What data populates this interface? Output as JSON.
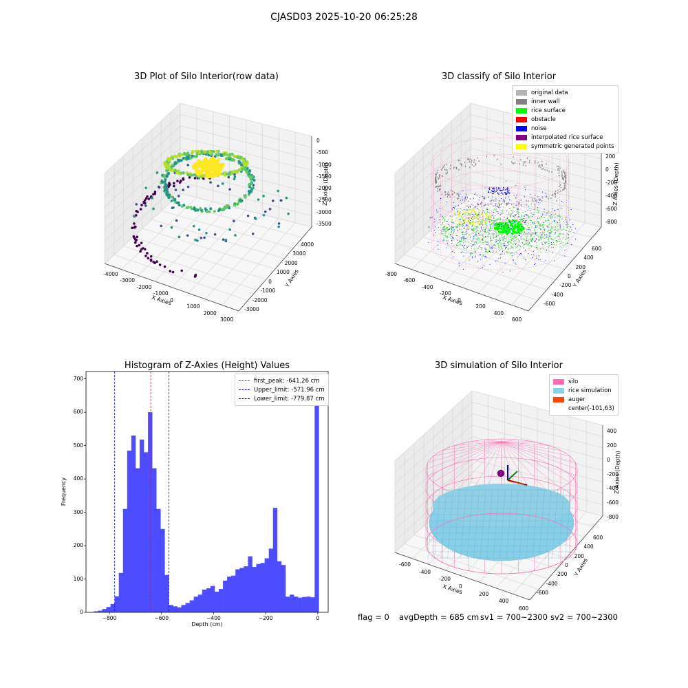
{
  "figure": {
    "suptitle": "CJASD03 2025-10-20 06:25:28",
    "status": {
      "flag": "flag = 0",
      "avg_depth": "avgDepth = 685 cm",
      "sv1": "sv1 = 700~2300",
      "sv2": "sv2 = 700~2300"
    }
  },
  "chart_data": [
    {
      "type": "scatter",
      "title": "3D Plot of Silo Interior(row data)",
      "xlabel": "X Axies",
      "ylabel": "Y Axies",
      "zlabel": "Z Axies (Depth)",
      "x_ticks": [
        "-4000",
        "-3000",
        "-2000",
        "-1000",
        "0",
        "1000",
        "2000",
        "3000"
      ],
      "y_ticks": [
        "-3000",
        "-2000",
        "-1000",
        "0",
        "1000",
        "2000",
        "3000",
        "4000"
      ],
      "z_ticks": [
        "0",
        "-500",
        "-1000",
        "-1500",
        "-2000",
        "-2500",
        "-3000",
        "-3500"
      ],
      "colormap": "viridis",
      "colors": [
        "#440154",
        "#3b528b",
        "#21918c",
        "#5ec962",
        "#fde725"
      ]
    },
    {
      "type": "scatter",
      "title": "3D classify of Silo Interior",
      "xlabel": "X Axies",
      "ylabel": "Y Axies",
      "zlabel": "Z Axies (Depth)",
      "x_ticks": [
        "-800",
        "-600",
        "-400",
        "-200",
        "0",
        "200",
        "400",
        "600"
      ],
      "y_ticks": [
        "-600",
        "-400",
        "-200",
        "0",
        "200",
        "400",
        "600"
      ],
      "z_ticks": [
        "200",
        "0",
        "-200",
        "-400",
        "-600",
        "-800"
      ],
      "z_top_partial": "00",
      "legend": [
        {
          "label": "original data",
          "color": "#b3b3b3"
        },
        {
          "label": "inner wall",
          "color": "#808080"
        },
        {
          "label": "rice surface",
          "color": "#00ff00"
        },
        {
          "label": "obstacle",
          "color": "#ff0000"
        },
        {
          "label": "noise",
          "color": "#0000ff"
        },
        {
          "label": "interpolated rice surface",
          "color": "#800080"
        },
        {
          "label": "symmetric generated points",
          "color": "#ffff00"
        }
      ],
      "legend_position": "upper-right",
      "wall_color": "#ff88c8"
    },
    {
      "type": "bar",
      "title": "Histogram of Z-Axies (Height) Values",
      "xlabel": "Depth (cm)",
      "ylabel": "Frequency",
      "xlim": [
        -890,
        40
      ],
      "ylim": [
        0,
        722
      ],
      "x_ticks": [
        -800,
        -600,
        -400,
        -200,
        0
      ],
      "y_ticks": [
        0,
        100,
        200,
        300,
        400,
        500,
        600,
        700
      ],
      "bar_color": "#4d4dff",
      "bin_width": 16,
      "bins_start": [
        -860,
        -844,
        -828,
        -812,
        -796,
        -780,
        -764,
        -748,
        -732,
        -716,
        -700,
        -684,
        -668,
        -652,
        -636,
        -620,
        -604,
        -588,
        -572,
        -556,
        -540,
        -524,
        -508,
        -492,
        -476,
        -460,
        -444,
        -428,
        -412,
        -396,
        -380,
        -364,
        -348,
        -332,
        -316,
        -300,
        -284,
        -268,
        -252,
        -236,
        -220,
        -204,
        -188,
        -172,
        -156,
        -140,
        -124,
        -108,
        -92,
        -76,
        -60,
        -44,
        -28,
        -12
      ],
      "counts": [
        3,
        5,
        10,
        16,
        25,
        48,
        118,
        310,
        485,
        530,
        432,
        518,
        480,
        600,
        432,
        310,
        250,
        112,
        22,
        18,
        15,
        22,
        28,
        36,
        47,
        53,
        68,
        72,
        79,
        62,
        70,
        95,
        107,
        110,
        129,
        133,
        138,
        168,
        136,
        145,
        148,
        162,
        191,
        313,
        153,
        142,
        47,
        53,
        47,
        44,
        46,
        47,
        45,
        680
      ],
      "lines": [
        {
          "label": "first_peak: -641.26 cm",
          "value": -641.26,
          "color": "#ff0000"
        },
        {
          "label": "Upper_limit: -571.96 cm",
          "value": -571.96,
          "color": "#0000ff"
        },
        {
          "label": "Lower_limit: -779.87 cm",
          "value": -779.87,
          "color": "#0000ff"
        }
      ],
      "legend_position": "upper-right"
    },
    {
      "type": "scatter",
      "title": "3D simulation of Silo Interior",
      "xlabel": "X Axies",
      "ylabel": "Y Axies",
      "zlabel": "Z Axies (Depth)",
      "x_ticks": [
        "-600",
        "-400",
        "-200",
        "0",
        "200",
        "400",
        "600"
      ],
      "y_ticks": [
        "-600",
        "-400",
        "-200",
        "0",
        "200",
        "400",
        "600"
      ],
      "z_ticks": [
        "400",
        "200",
        "0",
        "-200",
        "-400",
        "-600",
        "-800"
      ],
      "legend": [
        {
          "label": "silo",
          "color": "#ff69b4"
        },
        {
          "label": "rice simulation",
          "color": "#87cee8"
        },
        {
          "label": "auger",
          "color": "#ff4500"
        },
        {
          "label": "center(-101,63)",
          "color": ""
        }
      ],
      "legend_position": "upper-right"
    }
  ]
}
